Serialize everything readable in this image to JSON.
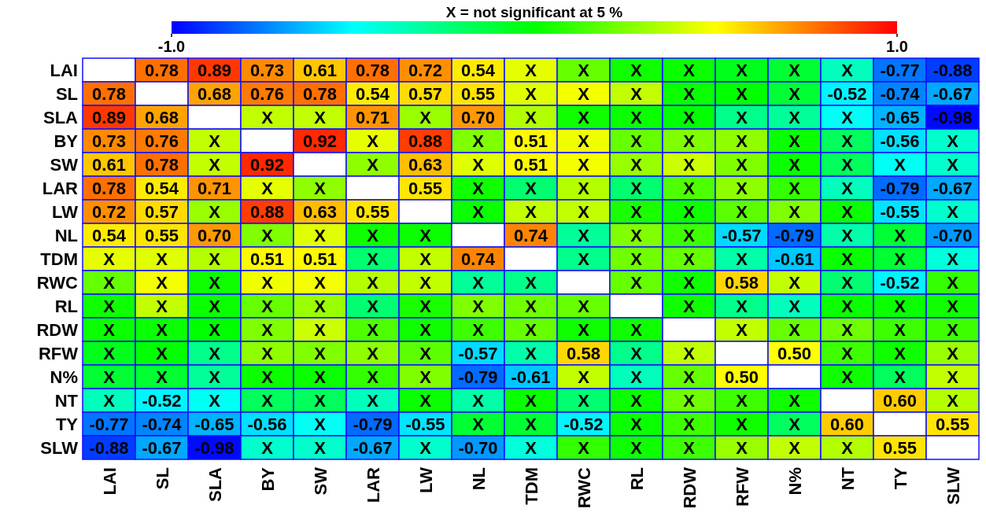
{
  "chart_data": {
    "type": "heatmap",
    "title": "X = not significant at 5 %",
    "categories": [
      "LAI",
      "SL",
      "SLA",
      "BY",
      "SW",
      "LAR",
      "LW",
      "NL",
      "TDM",
      "RWC",
      "RL",
      "RDW",
      "RFW",
      "N%",
      "NT",
      "TY",
      "SLW"
    ],
    "y_categories": [
      "LAI",
      "SL",
      "SLA",
      "BY",
      "SW",
      "LAR",
      "LW",
      "NL",
      "TDM",
      "RWC",
      "RL",
      "RDW",
      "RFW",
      "N%",
      "NT",
      "TY",
      "SLW"
    ],
    "clim": [
      -1,
      1
    ],
    "cticks": [
      {
        "value": -1,
        "label": "-1.0"
      },
      {
        "value": 1,
        "label": "1.0"
      }
    ],
    "cells": [
      [
        null,
        0.78,
        0.89,
        0.73,
        0.61,
        0.78,
        0.72,
        0.54,
        0.45,
        0.2,
        0.03,
        0.02,
        -0.05,
        -0.1,
        -0.37,
        -0.77,
        -0.88
      ],
      [
        0.78,
        null,
        0.68,
        0.76,
        0.78,
        0.54,
        0.57,
        0.55,
        0.44,
        0.48,
        0.38,
        0.02,
        0,
        -0.1,
        -0.52,
        -0.74,
        -0.67
      ],
      [
        0.89,
        0.68,
        null,
        0.38,
        0.38,
        0.71,
        0.3,
        0.7,
        0.35,
        0.03,
        0.02,
        0,
        -0.27,
        -0.3,
        -0.48,
        -0.65,
        -0.98
      ],
      [
        0.73,
        0.76,
        0.38,
        null,
        0.92,
        0.45,
        0.88,
        0.25,
        0.51,
        0.47,
        0.2,
        0.25,
        0.28,
        0.02,
        -0.18,
        -0.56,
        -0.4
      ],
      [
        0.61,
        0.78,
        0.38,
        0.92,
        null,
        0.28,
        0.63,
        0.44,
        0.51,
        0.48,
        0.3,
        0.4,
        0.25,
        0.02,
        -0.18,
        -0.48,
        -0.4
      ],
      [
        0.78,
        0.54,
        0.71,
        0.45,
        0.28,
        null,
        0.55,
        0.03,
        -0.22,
        0.35,
        -0.22,
        0.15,
        0.28,
        0.1,
        -0.37,
        -0.79,
        -0.67
      ],
      [
        0.72,
        0.57,
        0.3,
        0.88,
        0.63,
        0.55,
        null,
        0.02,
        0.38,
        0.38,
        0.05,
        0.03,
        0.18,
        0.25,
        0.02,
        -0.55,
        -0.4
      ],
      [
        0.54,
        0.55,
        0.7,
        0.25,
        0.44,
        0.03,
        0.02,
        null,
        0.74,
        -0.3,
        0.25,
        0.12,
        -0.57,
        -0.79,
        -0.33,
        -0.1,
        -0.7
      ],
      [
        0.45,
        0.44,
        0.35,
        0.51,
        0.51,
        -0.22,
        0.38,
        0.74,
        null,
        -0.27,
        0.22,
        0.2,
        -0.33,
        -0.61,
        0.02,
        -0.1,
        -0.43
      ],
      [
        0.2,
        0.48,
        0.03,
        0.47,
        0.48,
        0.35,
        0.38,
        -0.3,
        -0.27,
        null,
        0.2,
        0.03,
        0.58,
        0.38,
        -0.22,
        -0.52,
        0.1
      ],
      [
        0.03,
        0.38,
        0.02,
        0.2,
        0.3,
        -0.22,
        0.05,
        0.25,
        0.22,
        0.2,
        null,
        0.03,
        -0.27,
        -0.37,
        0.02,
        0.02,
        0.03
      ],
      [
        0.02,
        0.02,
        0,
        0.25,
        0.4,
        0.15,
        0.03,
        0.12,
        0.2,
        0.03,
        0.03,
        null,
        0.38,
        0.2,
        0.22,
        0.12,
        0.12
      ],
      [
        -0.05,
        0,
        -0.27,
        0.28,
        0.25,
        0.28,
        0.18,
        -0.57,
        -0.33,
        0.58,
        -0.27,
        0.38,
        null,
        0.5,
        0.12,
        0.03,
        0.3
      ],
      [
        -0.1,
        -0.1,
        -0.3,
        0.02,
        0.02,
        0.1,
        0.25,
        -0.79,
        -0.61,
        0.38,
        -0.37,
        0.2,
        0.5,
        null,
        0.03,
        -0.18,
        0.38
      ],
      [
        -0.37,
        -0.52,
        -0.48,
        -0.18,
        -0.18,
        -0.37,
        0.02,
        -0.33,
        0.02,
        -0.22,
        0.02,
        0.22,
        0.12,
        0.03,
        null,
        0.6,
        0.35
      ],
      [
        -0.77,
        -0.74,
        -0.65,
        -0.56,
        -0.48,
        -0.79,
        -0.55,
        -0.1,
        -0.1,
        -0.52,
        0.02,
        0.12,
        0.03,
        -0.18,
        0.6,
        null,
        0.55
      ],
      [
        -0.88,
        -0.67,
        -0.98,
        -0.4,
        -0.4,
        -0.67,
        -0.4,
        -0.7,
        -0.43,
        0.1,
        0.03,
        0.12,
        0.3,
        0.38,
        0.35,
        0.55,
        null
      ]
    ],
    "cell_labels": [
      [
        null,
        "0.78",
        "0.89",
        "0.73",
        "0.61",
        "0.78",
        "0.72",
        "0.54",
        "X",
        "X",
        "X",
        "X",
        "X",
        "X",
        "X",
        "-0.77",
        "-0.88"
      ],
      [
        "0.78",
        null,
        "0.68",
        "0.76",
        "0.78",
        "0.54",
        "0.57",
        "0.55",
        "X",
        "X",
        "X",
        "X",
        "X",
        "X",
        "-0.52",
        "-0.74",
        "-0.67"
      ],
      [
        "0.89",
        "0.68",
        null,
        "X",
        "X",
        "0.71",
        "X",
        "0.70",
        "X",
        "X",
        "X",
        "X",
        "X",
        "X",
        "X",
        "-0.65",
        "-0.98"
      ],
      [
        "0.73",
        "0.76",
        "X",
        null,
        "0.92",
        "X",
        "0.88",
        "X",
        "0.51",
        "X",
        "X",
        "X",
        "X",
        "X",
        "X",
        "-0.56",
        "X"
      ],
      [
        "0.61",
        "0.78",
        "X",
        "0.92",
        null,
        "X",
        "0.63",
        "X",
        "0.51",
        "X",
        "X",
        "X",
        "X",
        "X",
        "X",
        "X",
        "X"
      ],
      [
        "0.78",
        "0.54",
        "0.71",
        "X",
        "X",
        null,
        "0.55",
        "X",
        "X",
        "X",
        "X",
        "X",
        "X",
        "X",
        "X",
        "-0.79",
        "-0.67"
      ],
      [
        "0.72",
        "0.57",
        "X",
        "0.88",
        "0.63",
        "0.55",
        null,
        "X",
        "X",
        "X",
        "X",
        "X",
        "X",
        "X",
        "X",
        "-0.55",
        "X"
      ],
      [
        "0.54",
        "0.55",
        "0.70",
        "X",
        "X",
        "X",
        "X",
        null,
        "0.74",
        "X",
        "X",
        "X",
        "-0.57",
        "-0.79",
        "X",
        "X",
        "-0.70"
      ],
      [
        "X",
        "X",
        "X",
        "0.51",
        "0.51",
        "X",
        "X",
        "0.74",
        null,
        "X",
        "X",
        "X",
        "X",
        "-0.61",
        "X",
        "X",
        "X"
      ],
      [
        "X",
        "X",
        "X",
        "X",
        "X",
        "X",
        "X",
        "X",
        "X",
        null,
        "X",
        "X",
        "0.58",
        "X",
        "X",
        "-0.52",
        "X"
      ],
      [
        "X",
        "X",
        "X",
        "X",
        "X",
        "X",
        "X",
        "X",
        "X",
        "X",
        null,
        "X",
        "X",
        "X",
        "X",
        "X",
        "X"
      ],
      [
        "X",
        "X",
        "X",
        "X",
        "X",
        "X",
        "X",
        "X",
        "X",
        "X",
        "X",
        null,
        "X",
        "X",
        "X",
        "X",
        "X"
      ],
      [
        "X",
        "X",
        "X",
        "X",
        "X",
        "X",
        "X",
        "-0.57",
        "X",
        "0.58",
        "X",
        "X",
        null,
        "0.50",
        "X",
        "X",
        "X"
      ],
      [
        "X",
        "X",
        "X",
        "X",
        "X",
        "X",
        "X",
        "-0.79",
        "-0.61",
        "X",
        "X",
        "X",
        "0.50",
        null,
        "X",
        "X",
        "X"
      ],
      [
        "X",
        "-0.52",
        "X",
        "X",
        "X",
        "X",
        "X",
        "X",
        "X",
        "X",
        "X",
        "X",
        "X",
        "X",
        null,
        "0.60",
        "X"
      ],
      [
        "-0.77",
        "-0.74",
        "-0.65",
        "-0.56",
        "X",
        "-0.79",
        "-0.55",
        "X",
        "X",
        "-0.52",
        "X",
        "X",
        "X",
        "X",
        "0.60",
        null,
        "0.55"
      ],
      [
        "-0.88",
        "-0.67",
        "-0.98",
        "X",
        "X",
        "-0.67",
        "X",
        "-0.70",
        "X",
        "X",
        "X",
        "X",
        "X",
        "X",
        "X",
        "0.55",
        null
      ]
    ]
  }
}
